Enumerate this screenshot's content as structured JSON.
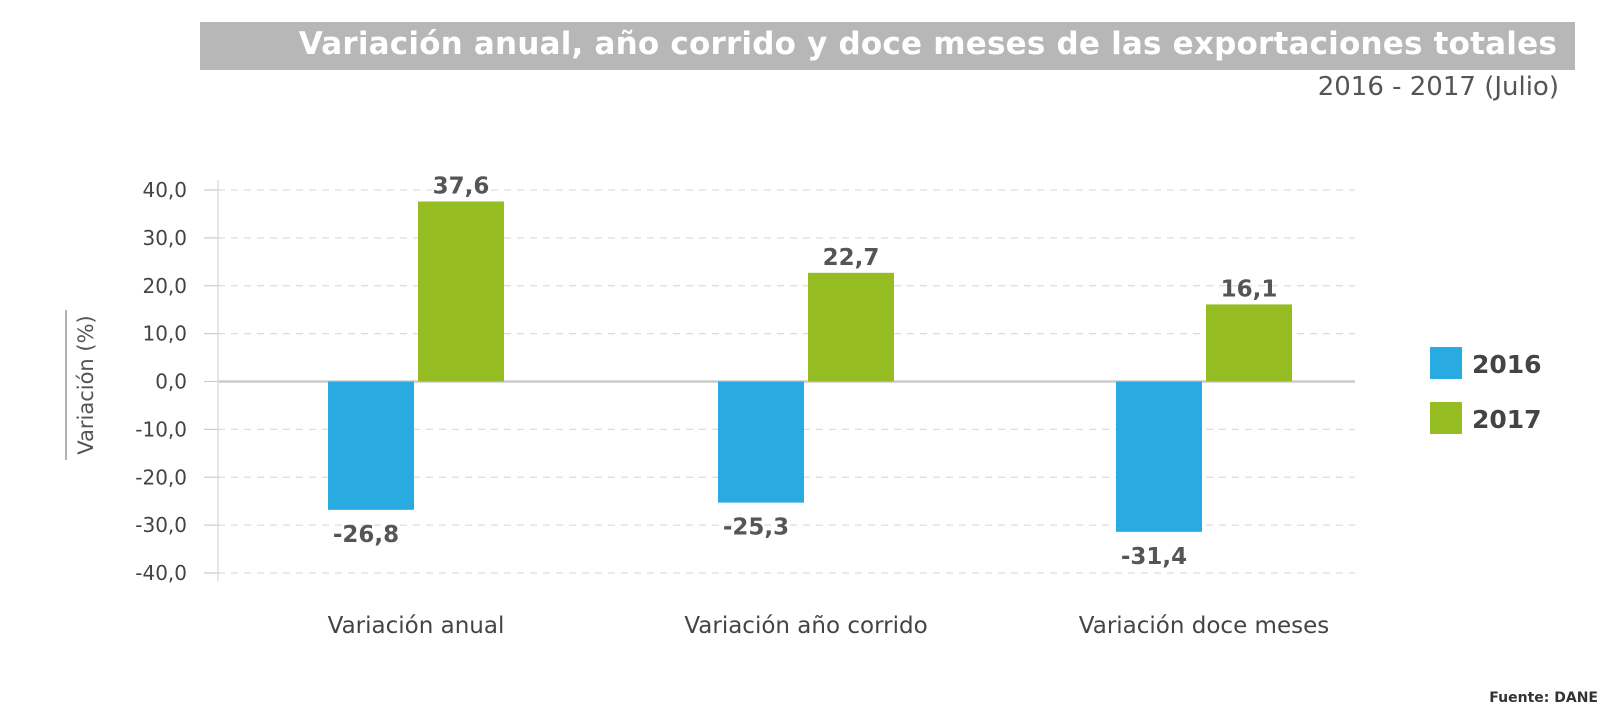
{
  "chart_data": {
    "type": "bar",
    "title": "Variación anual, año corrido y doce meses de las exportaciones totales",
    "subtitle": "2016 - 2017 (Julio)",
    "ylabel": "Variación (%)",
    "xlabel": "",
    "ylim": [
      -40,
      40
    ],
    "yticks": [
      "40,0",
      "30,0",
      "20,0",
      "10,0",
      "0,0",
      "-10,0",
      "-20,0",
      "-30,0",
      "-40,0"
    ],
    "ytick_values": [
      40,
      30,
      20,
      10,
      0,
      -10,
      -20,
      -30,
      -40
    ],
    "grid": true,
    "legend_position": "right",
    "categories": [
      "Variación anual",
      "Variación año corrido",
      "Variación doce meses"
    ],
    "series": [
      {
        "name": "2016",
        "color": "#29abe2",
        "values": [
          -26.8,
          -25.3,
          -31.4
        ],
        "labels": [
          "-26,8",
          "-25,3",
          "-31,4"
        ]
      },
      {
        "name": "2017",
        "color": "#95bc21",
        "values": [
          37.6,
          22.7,
          16.1
        ],
        "labels": [
          "37,6",
          "22,7",
          "16,1"
        ]
      }
    ],
    "source": "Fuente: DANE"
  }
}
